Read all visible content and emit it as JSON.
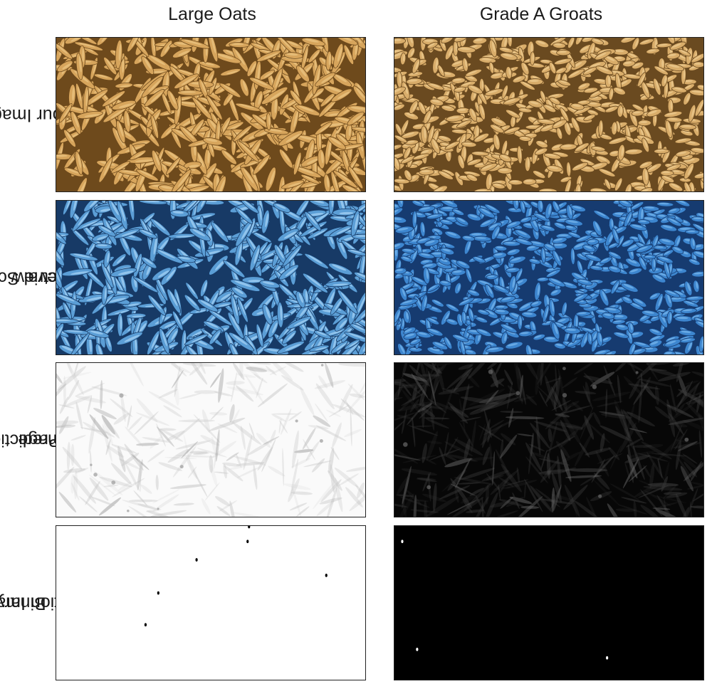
{
  "columns": [
    {
      "title": "Large Oats"
    },
    {
      "title": "Grade A Groats"
    }
  ],
  "rows": [
    {
      "label_lines": [
        "Colour Image"
      ]
    },
    {
      "label_lines": [
        "Spectral Scanner",
        "Preview"
      ]
    },
    {
      "label_lines": [
        "Prediction",
        "Image"
      ]
    },
    {
      "label_lines": [
        "Binary",
        "Prediction Image"
      ]
    }
  ],
  "panels": [
    {
      "row": 0,
      "col": 0,
      "kind": "colour",
      "bg": "#6e4a1c",
      "grain": "#d7a55c",
      "hi": "#f0cf90"
    },
    {
      "row": 0,
      "col": 1,
      "kind": "colour",
      "bg": "#6a4a20",
      "grain": "#d9ad6a",
      "hi": "#f3d59d"
    },
    {
      "row": 1,
      "col": 0,
      "kind": "spectral",
      "bg": "#173a66",
      "grain": "#5b9ed6",
      "hi": "#bfe3ff"
    },
    {
      "row": 1,
      "col": 1,
      "kind": "spectral",
      "bg": "#163b70",
      "grain": "#3d86cf",
      "hi": "#8cc6f5"
    },
    {
      "row": 2,
      "col": 0,
      "kind": "prediction",
      "bg": "#fafafa",
      "grain": "#c8c8c8",
      "hi": "#9a9a9a"
    },
    {
      "row": 2,
      "col": 1,
      "kind": "prediction",
      "bg": "#070707",
      "grain": "#3a3a3a",
      "hi": "#6a6a6a"
    },
    {
      "row": 3,
      "col": 0,
      "kind": "binary",
      "bg": "#ffffff",
      "grain": "#000000",
      "hi": "#000000"
    },
    {
      "row": 3,
      "col": 1,
      "kind": "binary",
      "bg": "#000000",
      "grain": "#ffffff",
      "hi": "#ffffff"
    }
  ]
}
